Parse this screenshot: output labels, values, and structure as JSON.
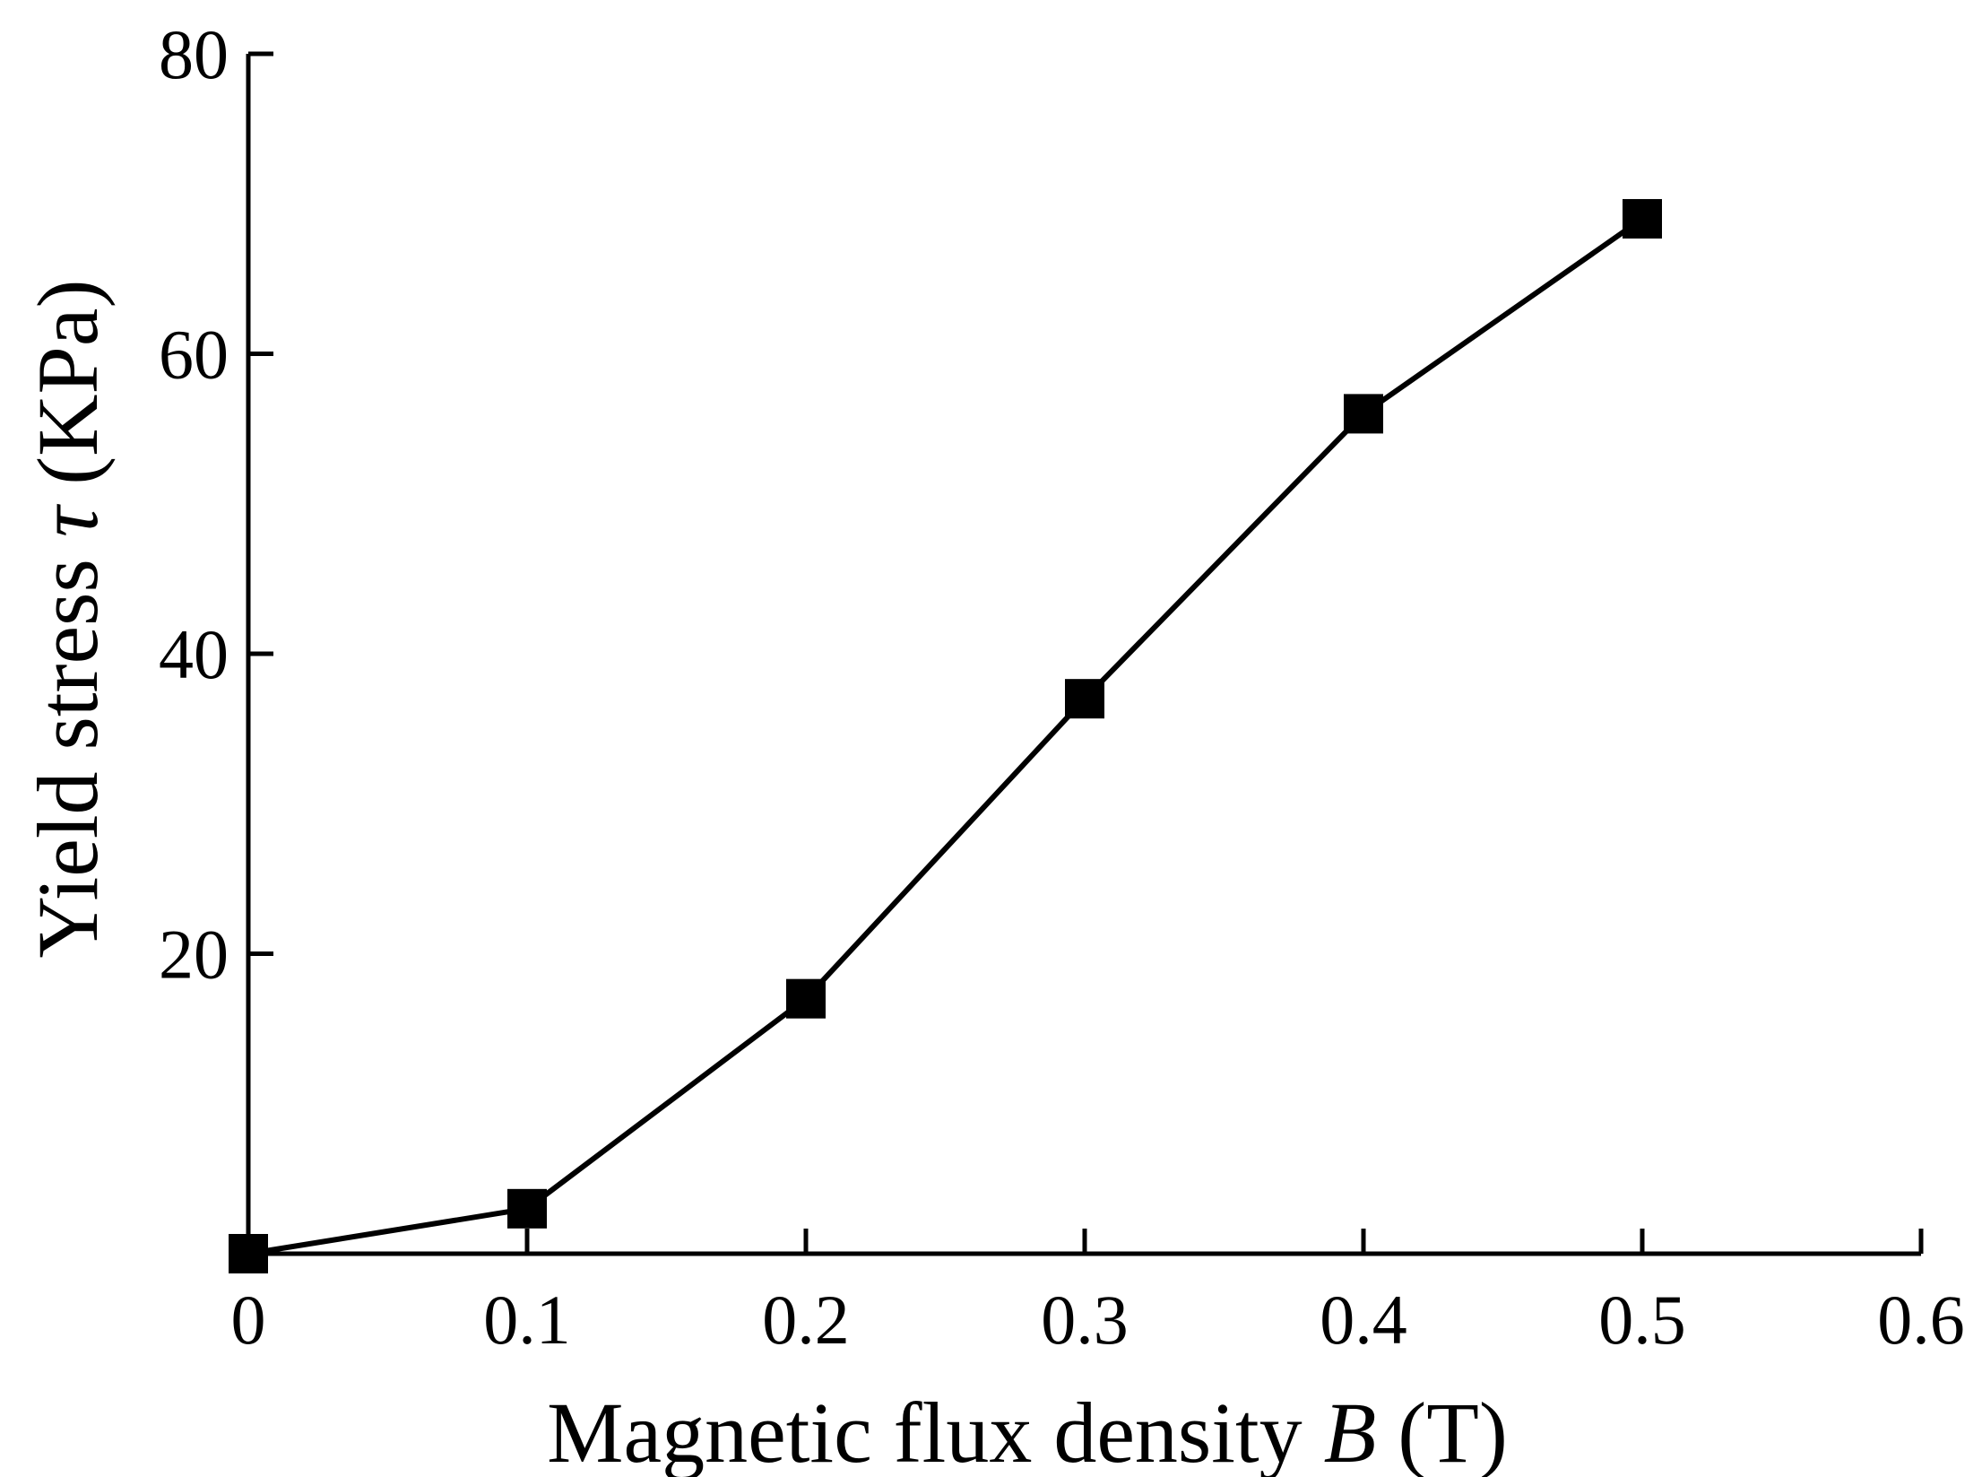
{
  "chart_data": {
    "type": "line",
    "xlabel": {
      "prefix": "Magnetic flux density ",
      "symbol": "B",
      "suffix": " (T)"
    },
    "ylabel": {
      "prefix": "Yield stress ",
      "symbol": "τ",
      "suffix": " (KPa)"
    },
    "xlim": [
      0,
      0.6
    ],
    "ylim": [
      0,
      80
    ],
    "xticks": [
      0,
      0.1,
      0.2,
      0.3,
      0.4,
      0.5,
      0.6
    ],
    "xtick_labels": [
      "0",
      "0.1",
      "0.2",
      "0.3",
      "0.4",
      "0.5",
      "0.6"
    ],
    "yticks": [
      20,
      40,
      60,
      80
    ],
    "ytick_labels": [
      "20",
      "40",
      "60",
      "80"
    ],
    "grid": false,
    "series": [
      {
        "x": [
          0,
          0.1,
          0.2,
          0.3,
          0.4,
          0.5
        ],
        "y": [
          0,
          3,
          17,
          37,
          56,
          69
        ],
        "marker": "square",
        "color": "#000000"
      }
    ]
  }
}
